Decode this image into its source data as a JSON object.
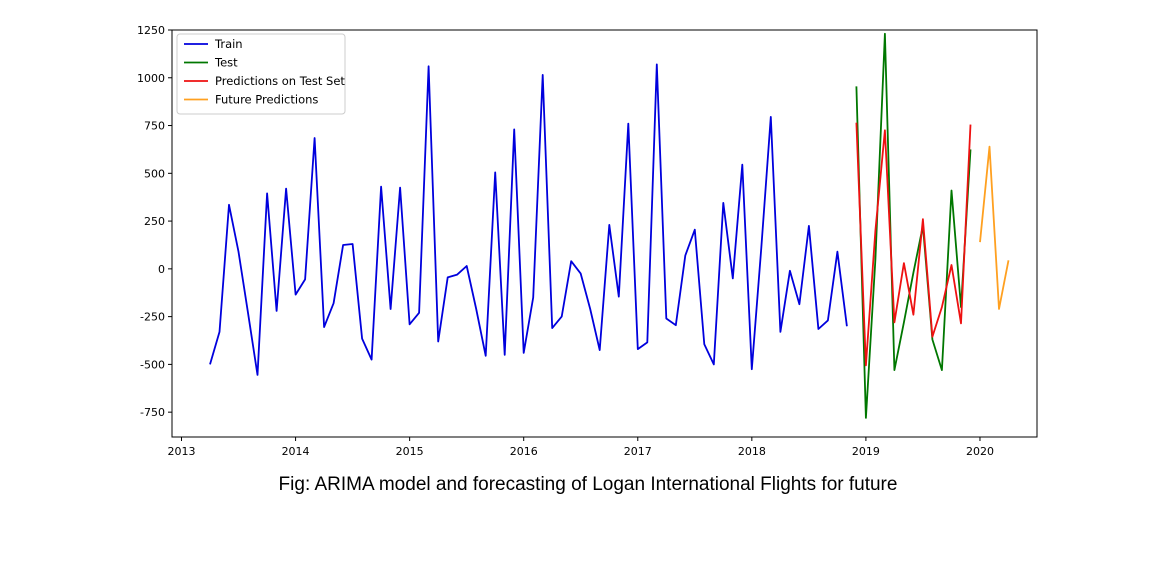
{
  "caption": "Fig: ARIMA model and forecasting of Logan International Flights for future",
  "chart_data": {
    "type": "line",
    "x_ticks": [
      "2013",
      "2014",
      "2015",
      "2016",
      "2017",
      "2018",
      "2019",
      "2020"
    ],
    "y_ticks": [
      1250,
      1000,
      750,
      500,
      250,
      0,
      -250,
      -500,
      -750
    ],
    "xlim": [
      "2012-12-01",
      "2020-07-01"
    ],
    "ylim": [
      -880,
      1250
    ],
    "legend_position": "top-left",
    "series": [
      {
        "name": "Train",
        "color": "#0000dd",
        "points": [
          [
            "2013-04-01",
            -500
          ],
          [
            "2013-05-01",
            -330
          ],
          [
            "2013-06-01",
            335
          ],
          [
            "2013-07-01",
            90
          ],
          [
            "2013-08-01",
            -230
          ],
          [
            "2013-09-01",
            -555
          ],
          [
            "2013-10-01",
            395
          ],
          [
            "2013-11-01",
            -220
          ],
          [
            "2013-12-01",
            420
          ],
          [
            "2014-01-01",
            -135
          ],
          [
            "2014-02-01",
            -55
          ],
          [
            "2014-03-01",
            685
          ],
          [
            "2014-04-01",
            -305
          ],
          [
            "2014-05-01",
            -180
          ],
          [
            "2014-06-01",
            125
          ],
          [
            "2014-07-01",
            130
          ],
          [
            "2014-08-01",
            -365
          ],
          [
            "2014-09-01",
            -475
          ],
          [
            "2014-10-01",
            430
          ],
          [
            "2014-11-01",
            -210
          ],
          [
            "2014-12-01",
            425
          ],
          [
            "2015-01-01",
            -290
          ],
          [
            "2015-02-01",
            -230
          ],
          [
            "2015-03-01",
            1060
          ],
          [
            "2015-04-01",
            -380
          ],
          [
            "2015-05-01",
            -45
          ],
          [
            "2015-06-01",
            -30
          ],
          [
            "2015-07-01",
            15
          ],
          [
            "2015-08-01",
            -210
          ],
          [
            "2015-09-01",
            -455
          ],
          [
            "2015-10-01",
            505
          ],
          [
            "2015-11-01",
            -450
          ],
          [
            "2015-12-01",
            730
          ],
          [
            "2016-01-01",
            -440
          ],
          [
            "2016-02-01",
            -150
          ],
          [
            "2016-03-01",
            1015
          ],
          [
            "2016-04-01",
            -310
          ],
          [
            "2016-05-01",
            -250
          ],
          [
            "2016-06-01",
            40
          ],
          [
            "2016-07-01",
            -25
          ],
          [
            "2016-08-01",
            -210
          ],
          [
            "2016-09-01",
            -425
          ],
          [
            "2016-10-01",
            230
          ],
          [
            "2016-11-01",
            -145
          ],
          [
            "2016-12-01",
            760
          ],
          [
            "2017-01-01",
            -420
          ],
          [
            "2017-02-01",
            -385
          ],
          [
            "2017-03-01",
            1070
          ],
          [
            "2017-04-01",
            -260
          ],
          [
            "2017-05-01",
            -295
          ],
          [
            "2017-06-01",
            70
          ],
          [
            "2017-07-01",
            205
          ],
          [
            "2017-08-01",
            -395
          ],
          [
            "2017-09-01",
            -500
          ],
          [
            "2017-10-01",
            345
          ],
          [
            "2017-11-01",
            -50
          ],
          [
            "2017-12-01",
            545
          ],
          [
            "2018-01-01",
            -525
          ],
          [
            "2018-02-01",
            110
          ],
          [
            "2018-03-01",
            795
          ],
          [
            "2018-04-01",
            -330
          ],
          [
            "2018-05-01",
            -10
          ],
          [
            "2018-06-01",
            -185
          ],
          [
            "2018-07-01",
            225
          ],
          [
            "2018-08-01",
            -315
          ],
          [
            "2018-09-01",
            -270
          ],
          [
            "2018-10-01",
            90
          ],
          [
            "2018-11-01",
            -300
          ]
        ]
      },
      {
        "name": "Test",
        "color": "#007700",
        "points": [
          [
            "2018-12-01",
            955
          ],
          [
            "2019-01-01",
            -780
          ],
          [
            "2019-02-01",
            50
          ],
          [
            "2019-03-01",
            1230
          ],
          [
            "2019-04-01",
            -530
          ],
          [
            "2019-05-01",
            -280
          ],
          [
            "2019-06-01",
            -20
          ],
          [
            "2019-07-01",
            225
          ],
          [
            "2019-08-01",
            -370
          ],
          [
            "2019-09-01",
            -530
          ],
          [
            "2019-10-01",
            410
          ],
          [
            "2019-11-01",
            -200
          ],
          [
            "2019-12-01",
            625
          ]
        ]
      },
      {
        "name": "Predictions on Test Set",
        "color": "#ee1111",
        "points": [
          [
            "2018-12-01",
            765
          ],
          [
            "2019-01-01",
            -505
          ],
          [
            "2019-02-01",
            200
          ],
          [
            "2019-03-01",
            725
          ],
          [
            "2019-04-01",
            -280
          ],
          [
            "2019-05-01",
            30
          ],
          [
            "2019-06-01",
            -240
          ],
          [
            "2019-07-01",
            260
          ],
          [
            "2019-08-01",
            -355
          ],
          [
            "2019-09-01",
            -200
          ],
          [
            "2019-10-01",
            20
          ],
          [
            "2019-11-01",
            -285
          ],
          [
            "2019-12-01",
            755
          ]
        ]
      },
      {
        "name": "Future Predictions",
        "color": "#ffa020",
        "points": [
          [
            "2020-01-01",
            140
          ],
          [
            "2020-02-01",
            640
          ],
          [
            "2020-03-01",
            -210
          ],
          [
            "2020-04-01",
            45
          ]
        ]
      }
    ]
  }
}
